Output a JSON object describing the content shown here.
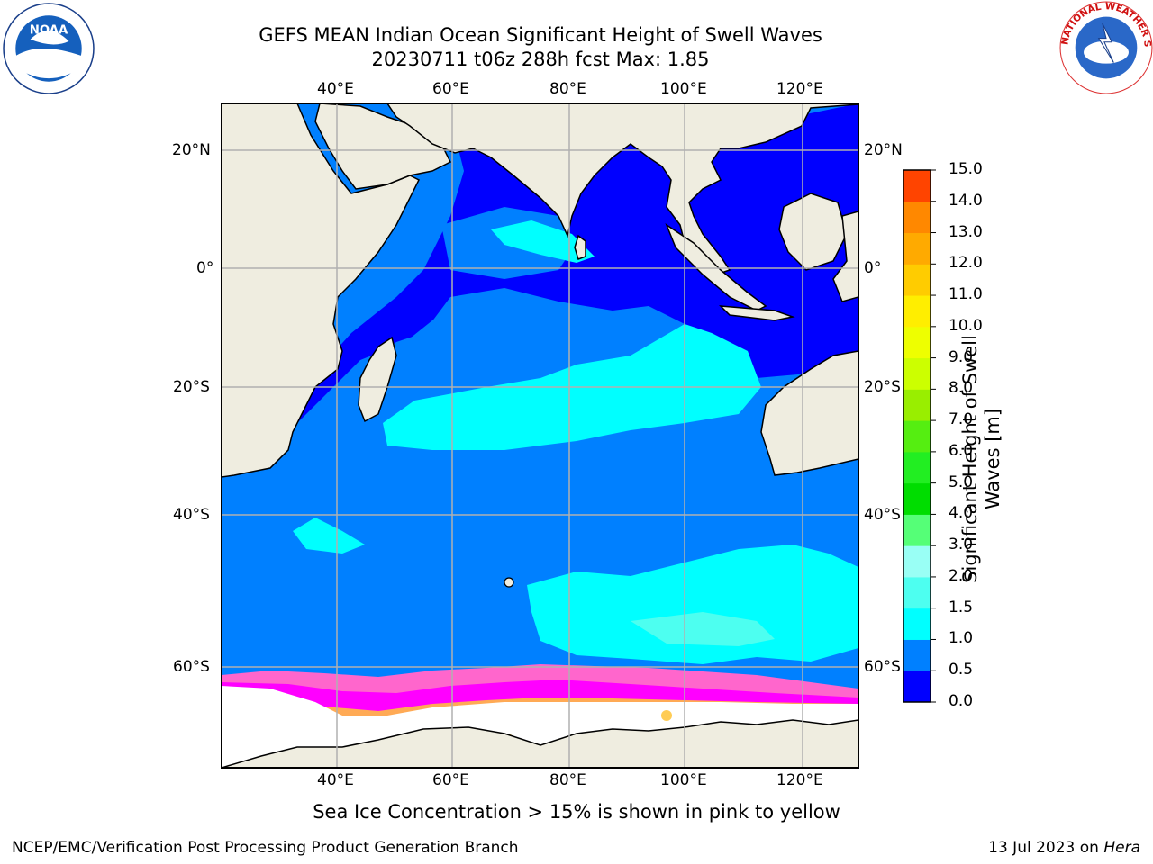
{
  "header": {
    "title_line1": "GEFS MEAN Indian Ocean Significant Height of Swell Waves",
    "title_line2": "20230711 t06z 288h fcst   Max: 1.85"
  },
  "logos": {
    "left": {
      "icon": "noaa-logo",
      "text": "NOAA"
    },
    "right": {
      "icon": "nws-logo",
      "ring_text": "NATIONAL WEATHER SERVICE"
    }
  },
  "map": {
    "lon_labels_top": [
      "40°E",
      "60°E",
      "80°E",
      "100°E",
      "120°E"
    ],
    "lon_labels_bottom": [
      "40°E",
      "60°E",
      "80°E",
      "100°E",
      "120°E"
    ],
    "lat_labels_left": [
      "20°N",
      "0°",
      "20°S",
      "40°S",
      "60°S"
    ],
    "lat_labels_right": [
      "20°N",
      "0°",
      "20°S",
      "40°S",
      "60°S"
    ],
    "colors": {
      "land": "#efede0",
      "ocean_base": "#0080ff",
      "swell_low": "#0000ff",
      "swell_mid": "#00ffff",
      "swell_light": "#4dfff0",
      "ice": "#ffffff",
      "ice_edge": [
        "#ff66cc",
        "#ff00ff",
        "#ffaa55",
        "#ffd040"
      ],
      "grid": "#b0b0b0"
    }
  },
  "colorbar": {
    "label": "Significant Height of Swell Waves [m]",
    "ticks": [
      "0.0",
      "0.5",
      "1.0",
      "1.5",
      "2.0",
      "3.0",
      "4.0",
      "5.0",
      "6.0",
      "7.0",
      "8.0",
      "9.0",
      "10.0",
      "11.0",
      "12.0",
      "13.0",
      "14.0",
      "15.0"
    ],
    "colors": [
      "#0000ff",
      "#0080ff",
      "#00ffff",
      "#4dfff0",
      "#99fff5",
      "#55ff77",
      "#00dd00",
      "#22ee22",
      "#55ee11",
      "#99ee00",
      "#ccff00",
      "#eeff00",
      "#ffee00",
      "#ffcc00",
      "#ffaa00",
      "#ff8800",
      "#ff4400",
      "#ff0000"
    ]
  },
  "caption": "Sea Ice Concentration > 15% is shown in pink to yellow",
  "footer": {
    "left": "NCEP/EMC/Verification Post Processing Product Generation Branch",
    "right_date": "13 Jul 2023 on ",
    "right_host": "Hera"
  }
}
